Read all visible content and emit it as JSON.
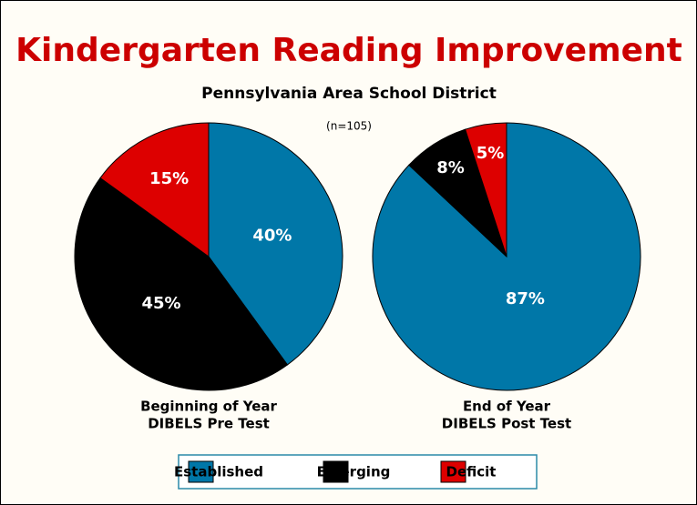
{
  "title": "Kindergarten Reading Improvement",
  "subtitle": "Pennsylvania Area School District",
  "note": "(n=105)",
  "chart_data": [
    {
      "type": "pie",
      "caption": [
        "Beginning of Year",
        "DIBELS Pre Test"
      ],
      "categories": [
        "Established",
        "Emerging",
        "Deficit"
      ],
      "values": [
        40,
        45,
        15
      ],
      "value_labels": [
        "40%",
        "45%",
        "15%"
      ],
      "colors": [
        "#0077a8",
        "#000000",
        "#dd0000"
      ]
    },
    {
      "type": "pie",
      "caption": [
        "End of Year",
        "DIBELS Post Test"
      ],
      "categories": [
        "Established",
        "Emerging",
        "Deficit"
      ],
      "values": [
        87,
        8,
        5
      ],
      "value_labels": [
        "87%",
        "8%",
        "5%"
      ],
      "colors": [
        "#0077a8",
        "#000000",
        "#dd0000"
      ]
    }
  ]
}
